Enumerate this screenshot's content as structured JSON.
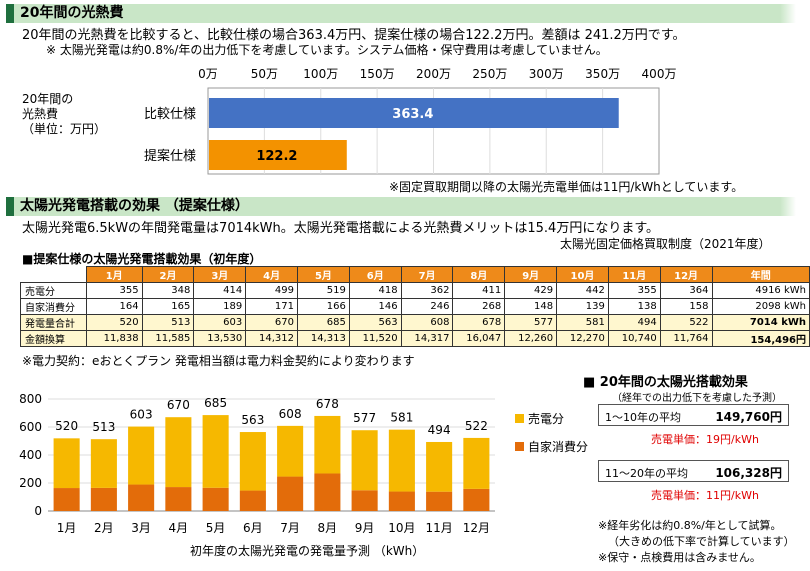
{
  "sec1": {
    "title": "20年間の光熱費",
    "line1": "20年間の光熱費を比較すると、比較仕様の場合363.4万円、提案仕様の場合122.2万円。差額は 241.2万円です。",
    "line2": "※ 太陽光発電は約0.8%/年の出力低下を考慮しています。システム価格・保守費用は考慮していません。"
  },
  "hbar": {
    "ylabel1": "20年間の",
    "ylabel2": "光熱費",
    "ylabel3": "（単位：万円）",
    "ticks": [
      "0万",
      "50万",
      "100万",
      "150万",
      "200万",
      "250万",
      "300万",
      "350万",
      "400万"
    ],
    "note": "※固定買取期間以降の太陽光売電単価は11円/kWhとしています。"
  },
  "sec2": {
    "title": "太陽光発電搭載の効果 （提案仕様）",
    "line1": "太陽光発電6.5kWの年間発電量は7014kWh。太陽光発電搭載による光熱費メリットは15.4万円になります。",
    "line2": "太陽光固定価格買取制度（2021年度）",
    "table_title": "■提案仕様の太陽光発電搭載効果（初年度）",
    "note": "※電力契約：eおとくプラン 発電相当額は電力料金契約により変わります"
  },
  "table": {
    "headers": [
      "1月",
      "2月",
      "3月",
      "4月",
      "5月",
      "6月",
      "7月",
      "8月",
      "9月",
      "10月",
      "11月",
      "12月",
      "年間"
    ],
    "rows": [
      {
        "label": "売電分",
        "cells": [
          "355",
          "348",
          "414",
          "499",
          "519",
          "418",
          "362",
          "411",
          "429",
          "442",
          "355",
          "364",
          "4916 kWh"
        ]
      },
      {
        "label": "自家消費分",
        "cells": [
          "164",
          "165",
          "189",
          "171",
          "166",
          "146",
          "246",
          "268",
          "148",
          "139",
          "138",
          "158",
          "2098 kWh"
        ]
      },
      {
        "label": "発電量合計",
        "cells": [
          "520",
          "513",
          "603",
          "670",
          "685",
          "563",
          "608",
          "678",
          "577",
          "581",
          "494",
          "522",
          "7014 kWh"
        ]
      },
      {
        "label": "金額換算",
        "cells": [
          "11,838",
          "11,585",
          "13,530",
          "14,312",
          "14,313",
          "11,520",
          "14,317",
          "16,047",
          "12,260",
          "12,270",
          "10,740",
          "11,764",
          "154,496円"
        ]
      }
    ]
  },
  "chart_data": [
    {
      "type": "bar",
      "orientation": "horizontal",
      "categories": [
        "比較仕様",
        "提案仕様"
      ],
      "values": [
        363.4,
        122.2
      ],
      "xlim": [
        0,
        400
      ],
      "colors": [
        "#4472c4",
        "#f39200"
      ]
    },
    {
      "type": "bar",
      "stacked": true,
      "categories": [
        "1月",
        "2月",
        "3月",
        "4月",
        "5月",
        "6月",
        "7月",
        "8月",
        "9月",
        "10月",
        "11月",
        "12月"
      ],
      "series": [
        {
          "name": "売電分",
          "values": [
            355,
            348,
            414,
            499,
            519,
            418,
            362,
            411,
            429,
            442,
            355,
            364
          ],
          "color": "#f6b800"
        },
        {
          "name": "自家消費分",
          "values": [
            164,
            165,
            189,
            171,
            166,
            146,
            246,
            268,
            148,
            139,
            138,
            158
          ],
          "color": "#e36c0a"
        }
      ],
      "totals": [
        520,
        513,
        603,
        670,
        685,
        563,
        608,
        678,
        577,
        581,
        494,
        522
      ],
      "yticks": [
        "0",
        "200",
        "400",
        "600",
        "800"
      ],
      "ylim": [
        0,
        800
      ],
      "xlabel": "初年度の太陽光発電の発電量予測 （kWh）",
      "legend": "right"
    }
  ],
  "effect": {
    "title": "■ 20年間の太陽光搭載効果",
    "sub": "（経年での出力低下を考慮した予測）",
    "b1": {
      "label": "1～10年の平均",
      "value": "149,760円",
      "rate": "売電単価：19円/kWh"
    },
    "b2": {
      "label": "11～20年の平均",
      "value": "106,328円",
      "rate": "売電単価：11円/kWh"
    },
    "notes": [
      "※経年劣化は約0.8%/年として試算。",
      "（大きめの低下率で計算しています）",
      "※保守・点検費用は含みません。"
    ]
  }
}
